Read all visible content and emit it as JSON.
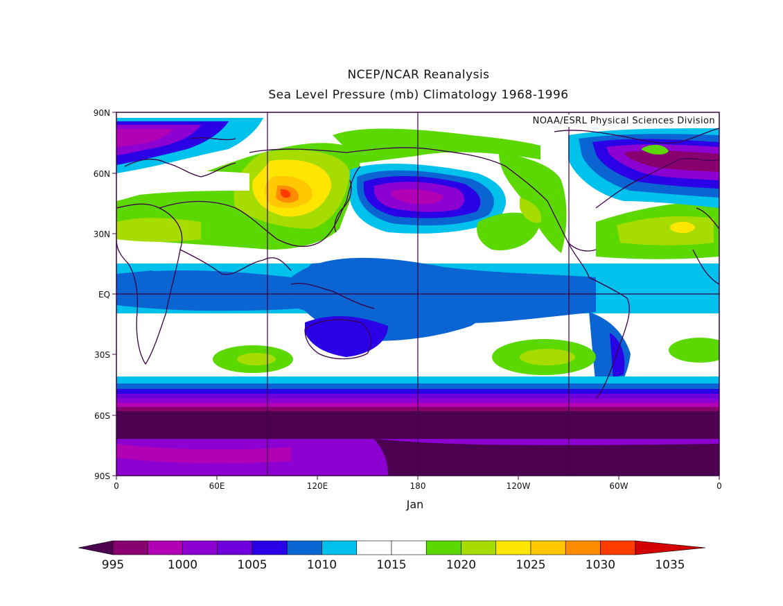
{
  "titles": {
    "line1": "NCEP/NCAR Reanalysis",
    "line2": "Sea Level Pressure (mb) Climatology 1968-1996"
  },
  "credit": "NOAA/ESRL Physical Sciences Division",
  "month_label": "Jan",
  "axes": {
    "lat_ticks": [
      "90N",
      "60N",
      "30N",
      "EQ",
      "30S",
      "60S",
      "90S"
    ],
    "lon_ticks": [
      "0",
      "60E",
      "120E",
      "180",
      "120W",
      "60W",
      "0"
    ]
  },
  "colorbar": {
    "labels": [
      "995",
      "1000",
      "1005",
      "1010",
      "1015",
      "1020",
      "1025",
      "1030",
      "1035"
    ],
    "colors": [
      "#4b0050",
      "#87006e",
      "#b200b4",
      "#8c00d2",
      "#6e00dc",
      "#2a00e6",
      "#0a64d2",
      "#00c0ec",
      "#ffffff",
      "#ffffff",
      "#5ad800",
      "#a6dc00",
      "#ffe600",
      "#ffc800",
      "#ff8c00",
      "#ff3c00",
      "#d20000"
    ]
  },
  "colors": {
    "frame": "#3c0046",
    "coast": "#3c0046"
  }
}
